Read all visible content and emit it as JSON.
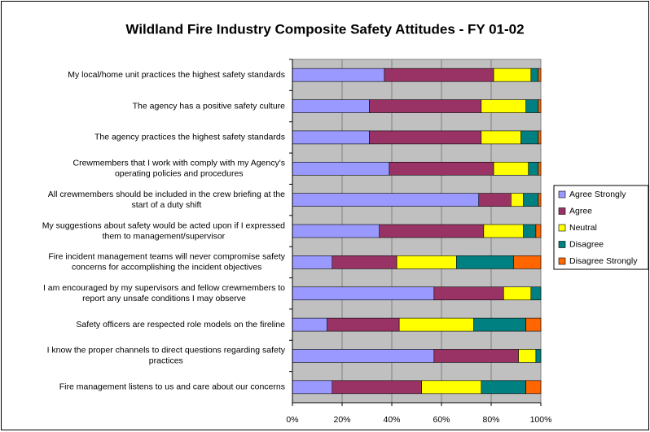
{
  "chart_data": {
    "type": "stacked_barh",
    "title": "Wildland Fire Industry Composite Safety Attitudes - FY 01-02",
    "categories": [
      [
        "My local/home unit practices the highest safety standards"
      ],
      [
        "The agency has a positive safety culture"
      ],
      [
        "The agency practices the highest safety standards"
      ],
      [
        "Crewmembers that I work with comply with my Agency's",
        "operating policies and procedures"
      ],
      [
        "All crewmembers should be included in the crew briefing at the",
        "start of a duty shift"
      ],
      [
        "My suggestions about safety would be acted upon if I expressed",
        "them to management/supervisor"
      ],
      [
        "Fire incident management teams will never compromise safety",
        "concerns for accomplishing the incident objectives"
      ],
      [
        "I am encouraged by my supervisors and fellow crewmembers to",
        "report any unsafe conditions I may observe"
      ],
      [
        "Safety officers are respected role models on the fireline"
      ],
      [
        "I know the proper channels to direct questions regarding safety",
        "practices"
      ],
      [
        "Fire management listens to us and care about our concerns"
      ]
    ],
    "series": [
      {
        "name": "Agree Strongly",
        "color": "#9999ff",
        "values": [
          37,
          31,
          31,
          39,
          75,
          35,
          16,
          57,
          14,
          57,
          16
        ]
      },
      {
        "name": "Agree",
        "color": "#993366",
        "values": [
          44,
          45,
          45,
          42,
          13,
          42,
          26,
          28,
          29,
          34,
          36
        ]
      },
      {
        "name": "Neutral",
        "color": "#ffff00",
        "values": [
          15,
          18,
          16,
          14,
          5,
          16,
          24,
          11,
          30,
          7,
          24
        ]
      },
      {
        "name": "Disagree",
        "color": "#008080",
        "values": [
          3,
          5,
          7,
          4,
          6,
          5,
          23,
          4,
          21,
          2,
          18
        ]
      },
      {
        "name": "Disagree Strongly",
        "color": "#ff6600",
        "values": [
          1,
          1,
          1,
          1,
          1,
          2,
          11,
          0,
          6,
          0,
          6
        ]
      }
    ],
    "xlim": [
      0,
      100
    ],
    "xticks": [
      {
        "value": 0,
        "label": "0%"
      },
      {
        "value": 20,
        "label": "20%"
      },
      {
        "value": 40,
        "label": "40%"
      },
      {
        "value": 60,
        "label": "60%"
      },
      {
        "value": 80,
        "label": "80%"
      },
      {
        "value": 100,
        "label": "100%"
      }
    ],
    "grid": true,
    "legend": "right"
  }
}
